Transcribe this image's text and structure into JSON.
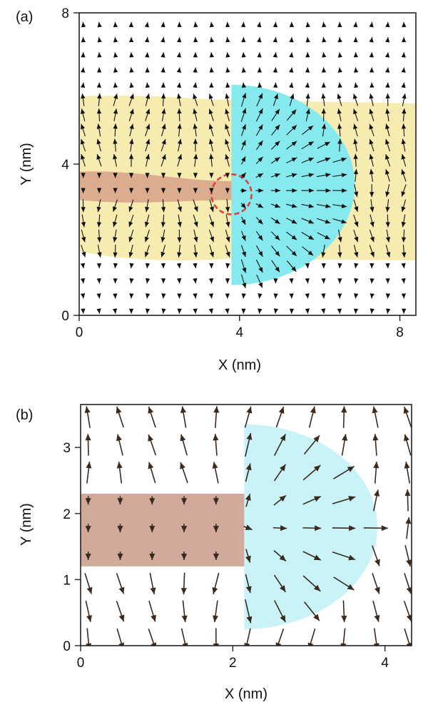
{
  "chart_data": [
    {
      "type": "scatter",
      "panel_label": "(a)",
      "xlabel": "X (nm)",
      "ylabel": "Y (nm)",
      "xlim": [
        0,
        8.4
      ],
      "ylim": [
        0,
        8
      ],
      "xticks": [
        "0",
        "4",
        "8"
      ],
      "yticks": [
        "0",
        "4",
        "8"
      ],
      "colors": {
        "wall": "#f7ecb0",
        "skyrmion": "#86e9ee",
        "string": "#d9a98b",
        "circle": "#e0403a"
      },
      "regions": {
        "wall_band_y": [
          1.4,
          5.8
        ],
        "string_y": [
          3.0,
          3.8
        ],
        "string_x_end": 3.8,
        "half_disk_center": [
          3.8,
          3.3
        ],
        "half_disk_radius": [
          2.9,
          2.5
        ],
        "emergent_defect_center": [
          3.8,
          3.2
        ],
        "emergent_defect_radius": 0.5
      },
      "vector_grid": {
        "x_start": 0.1,
        "x_step": 0.4,
        "nx": 21,
        "y_start": 0.1,
        "y_step": 0.4,
        "ny": 20
      }
    },
    {
      "type": "scatter",
      "panel_label": "(b)",
      "xlabel": "X (nm)",
      "ylabel": "Y (nm)",
      "xlim": [
        0,
        4.35
      ],
      "ylim": [
        0,
        3.65
      ],
      "xticks": [
        "0",
        "2",
        "4"
      ],
      "yticks": [
        "0",
        "1",
        "2",
        "3"
      ],
      "colors": {
        "skyrmion": "#c9f3f6",
        "string": "#cfa597"
      },
      "regions": {
        "string_y": [
          1.2,
          2.3
        ],
        "string_x_end": 2.15,
        "half_disk_center": [
          2.15,
          1.8
        ],
        "half_disk_radius": [
          1.75,
          1.55
        ]
      },
      "vector_grid": {
        "x_start": 0.1,
        "x_step": 0.42,
        "nx": 11,
        "y_start": 0.1,
        "y_step": 0.42,
        "ny": 9
      }
    }
  ]
}
